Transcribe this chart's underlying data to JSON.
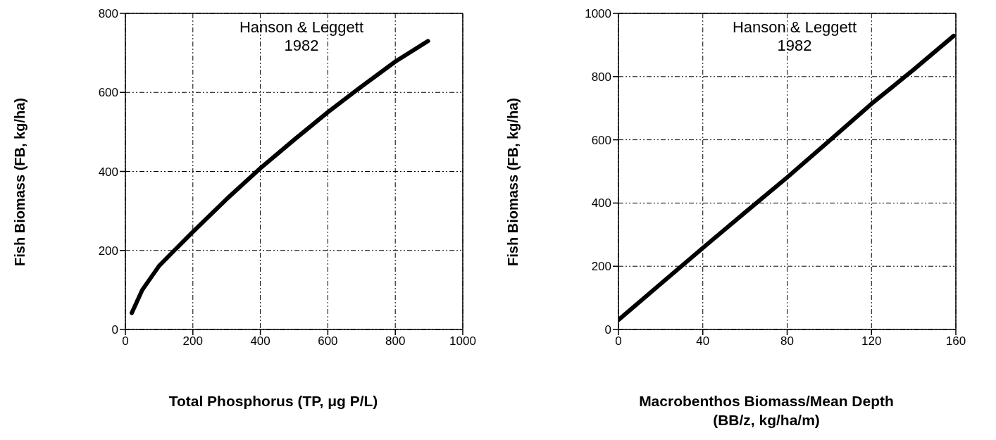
{
  "chart_data": [
    {
      "type": "line",
      "xlabel": "Total Phosphorus (TP, μg P/L)",
      "ylabel": "Fish Biomass (FB, kg/ha)",
      "annotations": [
        "Hanson & Leggett\n1982"
      ],
      "x": [
        19,
        50,
        100,
        145,
        200,
        300,
        400,
        500,
        600,
        700,
        800,
        897
      ],
      "series": [
        {
          "color": "#000000",
          "values": [
            42,
            100,
            161,
            200,
            247,
            330,
            408,
            480,
            550,
            615,
            678,
            730
          ]
        }
      ],
      "xlim": [
        0,
        1000
      ],
      "xticks": [
        0,
        200,
        400,
        600,
        800,
        1000
      ],
      "ylim": [
        0,
        800
      ],
      "yticks": [
        0,
        200,
        400,
        600,
        800
      ],
      "grid": true,
      "marker": "none",
      "line_style": "solid"
    },
    {
      "type": "line",
      "xlabel": "Macrobenthos Biomass/Mean Depth\n(BB/z, kg/ha/m)",
      "ylabel": "Fish Biomass (FB, kg/ha)",
      "annotations": [
        "Hanson & Leggett\n1982"
      ],
      "x": [
        0,
        20,
        40,
        60,
        80,
        100,
        120,
        140,
        159
      ],
      "series": [
        {
          "color": "#000000",
          "values": [
            30,
            144,
            258,
            370,
            481,
            597,
            714,
            822,
            929
          ]
        }
      ],
      "xlim": [
        0,
        160
      ],
      "xticks": [
        0,
        40,
        80,
        120,
        160
      ],
      "ylim": [
        0,
        1000
      ],
      "yticks": [
        0,
        200,
        400,
        600,
        800,
        1000
      ],
      "grid": true,
      "marker": "none",
      "line_style": "solid"
    }
  ]
}
